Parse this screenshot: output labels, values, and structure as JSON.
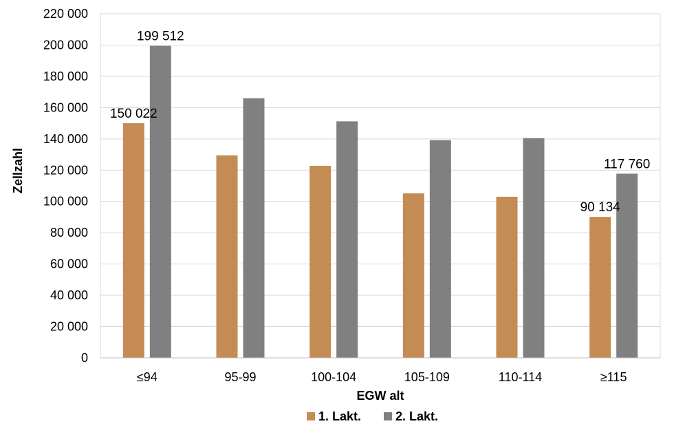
{
  "chart_data": {
    "type": "bar",
    "xlabel": "EGW alt",
    "ylabel": "Zellzahl",
    "ylim": [
      0,
      220000
    ],
    "ytick_step": 20000,
    "yticks": [
      "0",
      "20 000",
      "40 000",
      "60 000",
      "80 000",
      "100 000",
      "120 000",
      "140 000",
      "160 000",
      "180 000",
      "200 000",
      "220 000"
    ],
    "grid": true,
    "legend_position": "bottom",
    "categories": [
      "≤94",
      "95-99",
      "100-104",
      "105-109",
      "110-114",
      "≥115"
    ],
    "series": [
      {
        "name": "1. Lakt.",
        "color": "#C48B55",
        "values": [
          150022,
          129500,
          122800,
          105200,
          103000,
          90134
        ],
        "data_labels": [
          "150 022",
          "",
          "",
          "",
          "",
          "90 134"
        ]
      },
      {
        "name": "2. Lakt.",
        "color": "#808080",
        "values": [
          199512,
          166000,
          151200,
          139200,
          140500,
          117760
        ],
        "data_labels": [
          "199 512",
          "",
          "",
          "",
          "",
          "117 760"
        ]
      }
    ]
  }
}
